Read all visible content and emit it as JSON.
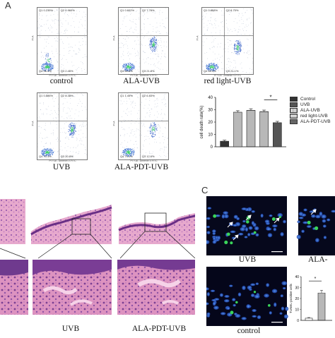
{
  "panel_letters": {
    "a": "A",
    "c": "C"
  },
  "flow_panels": [
    {
      "caption": "control",
      "q1": "Q1",
      "q1v": "0.235%",
      "q2": "Q2",
      "q2v": "0.960%",
      "q3": "Q3",
      "q3v": "2.45%",
      "q4": "Q4",
      "q4v": "96.4%",
      "xlabel": "PI Y-Al - Annexin V-FITC",
      "ylabel": "PI-A"
    },
    {
      "caption": "ALA-UVB",
      "q1": "Q1",
      "q1v": "0.602%",
      "q2": "Q2",
      "q2v": "7.78%",
      "q3": "Q3",
      "q3v": "21.8%",
      "q4": "Q4",
      "q4v": "69.8%",
      "xlabel": "PI Y-Al - Annexin V-FITC",
      "ylabel": "PI-A"
    },
    {
      "caption": "red light-UVB",
      "q1": "Q1",
      "q1v": "0.868%",
      "q2": "Q2",
      "q2v": "8.75%",
      "q3": "Q3",
      "q3v": "21.1%",
      "q4": "Q4",
      "q4v": "69.3%",
      "xlabel": "PI Y-Al - Annexin V-FITC",
      "ylabel": "PI-A"
    },
    {
      "caption": "UVB",
      "q1": "Q1",
      "q1v": "0.586%",
      "q2": "Q2",
      "q2v": "8.48%",
      "q3": "Q3",
      "q3v": "20.8%",
      "q4": "Q4",
      "q4v": "70.1%",
      "xlabel": "PI Y-Al - Annexin V-FITC",
      "ylabel": "PI-A"
    },
    {
      "caption": "ALA-PDT-UVB",
      "q1": "Q1",
      "q1v": "1.45%",
      "q2": "Q2",
      "q2v": "6.83%",
      "q3": "Q3",
      "q3v": "12.6%",
      "q4": "Q4",
      "q4v": "79.1%",
      "xlabel": "PI Y-Al - Annexin V-FITC",
      "ylabel": "PI-A"
    }
  ],
  "chart_data": [
    {
      "type": "bar",
      "categories": [
        "Control",
        "UVB",
        "ALA-UVB",
        "red light-UVB",
        "ALA-PDT-UVB"
      ],
      "values": [
        4.5,
        28,
        29.5,
        28.5,
        19.5
      ],
      "errors": [
        0.8,
        1.2,
        1.3,
        1.2,
        1.1
      ],
      "ylabel": "cell death rate(%)",
      "ylim": [
        0,
        40
      ],
      "yticks": [
        "0",
        "10",
        "20",
        "30",
        "40"
      ],
      "significance": "*",
      "legend": [
        "Control",
        "UVB",
        "ALA-UVB",
        "red light-UVB",
        "ALA-PDT-UVB"
      ],
      "legend_position": "top-right",
      "colors": [
        "#3c3c3c",
        "#2a2a2a",
        "#cfcfcf",
        "#bdbdbd",
        "#5a5a5a"
      ]
    },
    {
      "type": "bar",
      "categories": [
        "control",
        "UVB"
      ],
      "values": [
        2,
        25
      ],
      "errors": [
        0.6,
        2.5
      ],
      "ylabel": "TUNEL-positive cells",
      "ylim": [
        0,
        40
      ],
      "yticks": [
        "0",
        "10",
        "20",
        "30",
        "40"
      ],
      "significance": "*"
    }
  ],
  "he_captions": {
    "uvb": "UVB",
    "ala_pdt_uvb": "ALA-PDT-UVB"
  },
  "tunel_captions": {
    "uvb": "UVB",
    "control": "control",
    "cut": "ALA-"
  },
  "colors": {
    "he_pink": "#d98fb8",
    "he_purple": "#8a4f9e",
    "dapi_blue": "#1f4fd0",
    "tunel_green": "#3ad45a"
  }
}
